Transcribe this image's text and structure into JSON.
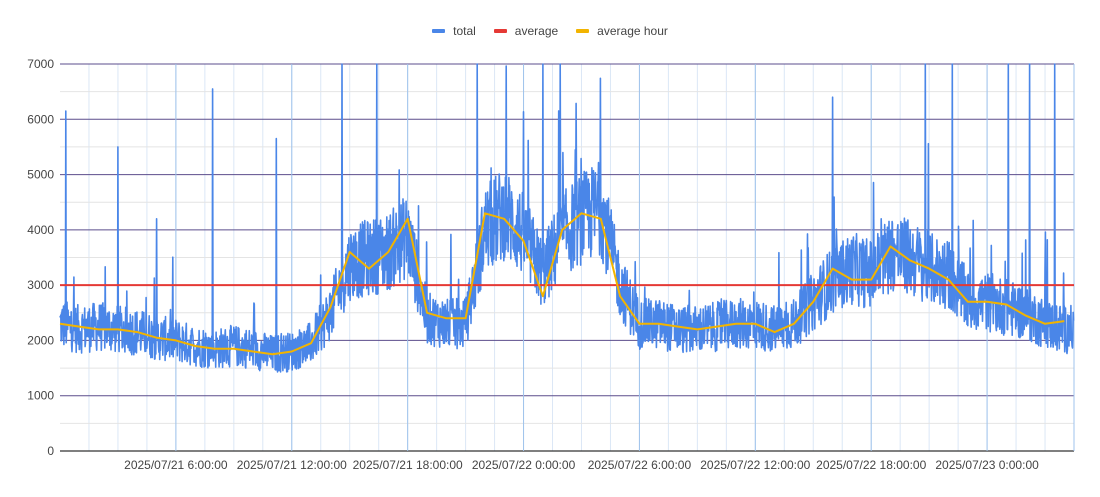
{
  "chart_data": {
    "type": "line",
    "title": "",
    "xlabel": "",
    "ylabel": "",
    "ylim": [
      0,
      7000
    ],
    "y_ticks": [
      0,
      1000,
      2000,
      3000,
      4000,
      5000,
      6000,
      7000
    ],
    "x_range_hours": [
      0,
      52.5
    ],
    "x_tick_labels": [
      {
        "label": "2025/07/21 6:00:00",
        "hour": 6
      },
      {
        "label": "2025/07/21 12:00:00",
        "hour": 12
      },
      {
        "label": "2025/07/21 18:00:00",
        "hour": 18
      },
      {
        "label": "2025/07/22 0:00:00",
        "hour": 24
      },
      {
        "label": "2025/07/22 6:00:00",
        "hour": 30
      },
      {
        "label": "2025/07/22 12:00:00",
        "hour": 36
      },
      {
        "label": "2025/07/22 18:00:00",
        "hour": 42
      },
      {
        "label": "2025/07/23 0:00:00",
        "hour": 48
      }
    ],
    "legend_position": "top",
    "grid": true,
    "series": [
      {
        "name": "total",
        "color": "#4a86e8",
        "profile_hours": [
          0,
          1,
          2,
          3,
          4,
          5,
          6,
          7,
          8,
          9,
          10,
          11,
          12,
          13,
          14,
          15,
          16,
          17,
          18,
          19,
          20,
          21,
          22,
          23,
          24,
          25,
          26,
          27,
          28,
          29,
          30,
          31,
          32,
          33,
          34,
          35,
          36,
          37,
          38,
          39,
          40,
          41,
          42,
          43,
          44,
          45,
          46,
          47,
          48,
          49,
          50,
          51,
          52
        ],
        "profile_values": [
          2300,
          2200,
          2250,
          2200,
          2150,
          2050,
          2000,
          1900,
          1850,
          1900,
          1850,
          1750,
          1800,
          1950,
          2500,
          3400,
          3500,
          3600,
          3900,
          2400,
          2300,
          2300,
          4000,
          4300,
          3900,
          3200,
          3900,
          4200,
          4400,
          3000,
          2300,
          2300,
          2200,
          2200,
          2250,
          2300,
          2300,
          2200,
          2300,
          2700,
          3100,
          3300,
          3200,
          3600,
          3500,
          3300,
          3200,
          2700,
          2700,
          2600,
          2500,
          2300,
          2200
        ],
        "spikes": [
          {
            "hour": 0.3,
            "value": 6150
          },
          {
            "hour": 3.0,
            "value": 5500
          },
          {
            "hour": 5.0,
            "value": 4200
          },
          {
            "hour": 7.9,
            "value": 6550
          },
          {
            "hour": 11.2,
            "value": 5650
          },
          {
            "hour": 14.6,
            "value": 7000
          },
          {
            "hour": 16.4,
            "value": 7000
          },
          {
            "hour": 21.6,
            "value": 7000
          },
          {
            "hour": 25.0,
            "value": 7000
          },
          {
            "hour": 25.9,
            "value": 7000
          },
          {
            "hour": 40.0,
            "value": 6400
          },
          {
            "hour": 44.8,
            "value": 7000
          },
          {
            "hour": 46.2,
            "value": 7000
          },
          {
            "hour": 49.1,
            "value": 7000
          },
          {
            "hour": 50.2,
            "value": 7000
          },
          {
            "hour": 51.5,
            "value": 7000
          }
        ]
      },
      {
        "name": "average",
        "color": "#e53935",
        "value": 3000
      },
      {
        "name": "average hour",
        "color": "#f2b400",
        "hours": [
          0,
          1,
          2,
          3,
          4,
          5,
          6,
          7,
          8,
          9,
          10,
          11,
          12,
          13,
          14,
          15,
          16,
          17,
          18,
          19,
          20,
          21,
          22,
          23,
          24,
          25,
          26,
          27,
          28,
          29,
          30,
          31,
          32,
          33,
          34,
          35,
          36,
          37,
          38,
          39,
          40,
          41,
          42,
          43,
          44,
          45,
          46,
          47,
          48,
          49,
          50,
          51,
          52
        ],
        "values": [
          2300,
          2250,
          2200,
          2200,
          2150,
          2050,
          2000,
          1900,
          1850,
          1850,
          1800,
          1750,
          1800,
          1950,
          2600,
          3600,
          3300,
          3600,
          4200,
          2500,
          2400,
          2400,
          4300,
          4200,
          3800,
          2800,
          4000,
          4300,
          4200,
          2800,
          2300,
          2300,
          2250,
          2200,
          2250,
          2300,
          2300,
          2150,
          2300,
          2700,
          3300,
          3100,
          3100,
          3700,
          3450,
          3300,
          3100,
          2700,
          2700,
          2650,
          2450,
          2300,
          2350
        ]
      }
    ]
  }
}
